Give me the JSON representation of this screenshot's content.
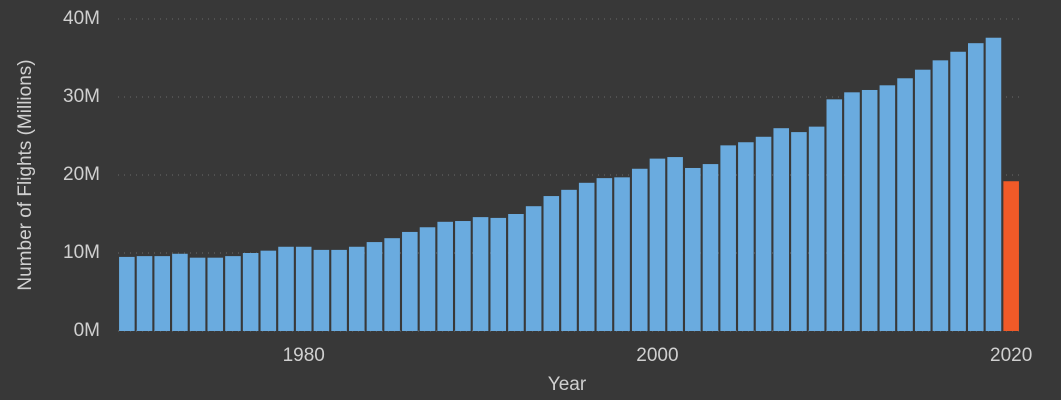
{
  "chart_data": {
    "type": "bar",
    "x_label": "Year",
    "y_label": "Number of Flights (Millions)",
    "x": [
      1970,
      1971,
      1972,
      1973,
      1974,
      1975,
      1976,
      1977,
      1978,
      1979,
      1980,
      1981,
      1982,
      1983,
      1984,
      1985,
      1986,
      1987,
      1988,
      1989,
      1990,
      1991,
      1992,
      1993,
      1994,
      1995,
      1996,
      1997,
      1998,
      1999,
      2000,
      2001,
      2002,
      2003,
      2004,
      2005,
      2006,
      2007,
      2008,
      2009,
      2010,
      2011,
      2012,
      2013,
      2014,
      2015,
      2016,
      2017,
      2018,
      2019,
      2020
    ],
    "values": [
      9.5,
      9.6,
      9.6,
      9.9,
      9.4,
      9.4,
      9.6,
      10.0,
      10.3,
      10.8,
      10.8,
      10.4,
      10.4,
      10.8,
      11.4,
      11.9,
      12.7,
      13.3,
      14.0,
      14.1,
      14.6,
      14.5,
      15.0,
      16.0,
      17.3,
      18.1,
      19.0,
      19.6,
      19.7,
      20.8,
      22.1,
      22.3,
      20.9,
      21.4,
      23.8,
      24.2,
      24.9,
      26.0,
      25.5,
      26.2,
      29.7,
      30.6,
      30.9,
      31.5,
      32.4,
      33.5,
      34.7,
      35.8,
      36.9,
      37.6,
      19.2
    ],
    "colors": [
      "#6aabdf",
      "#6aabdf",
      "#6aabdf",
      "#6aabdf",
      "#6aabdf",
      "#6aabdf",
      "#6aabdf",
      "#6aabdf",
      "#6aabdf",
      "#6aabdf",
      "#6aabdf",
      "#6aabdf",
      "#6aabdf",
      "#6aabdf",
      "#6aabdf",
      "#6aabdf",
      "#6aabdf",
      "#6aabdf",
      "#6aabdf",
      "#6aabdf",
      "#6aabdf",
      "#6aabdf",
      "#6aabdf",
      "#6aabdf",
      "#6aabdf",
      "#6aabdf",
      "#6aabdf",
      "#6aabdf",
      "#6aabdf",
      "#6aabdf",
      "#6aabdf",
      "#6aabdf",
      "#6aabdf",
      "#6aabdf",
      "#6aabdf",
      "#6aabdf",
      "#6aabdf",
      "#6aabdf",
      "#6aabdf",
      "#6aabdf",
      "#6aabdf",
      "#6aabdf",
      "#6aabdf",
      "#6aabdf",
      "#6aabdf",
      "#6aabdf",
      "#6aabdf",
      "#6aabdf",
      "#6aabdf",
      "#6aabdf",
      "#f05a28"
    ],
    "xlim": [
      1969.5,
      2020.5
    ],
    "xticks": [
      1980,
      2000,
      2020
    ],
    "ylim": [
      0,
      40
    ],
    "yticks": [
      {
        "value": 0,
        "label": "0M"
      },
      {
        "value": 10,
        "label": "10M"
      },
      {
        "value": 20,
        "label": "20M"
      },
      {
        "value": 30,
        "label": "30M"
      },
      {
        "value": 40,
        "label": "40M"
      }
    ],
    "grid": true
  }
}
